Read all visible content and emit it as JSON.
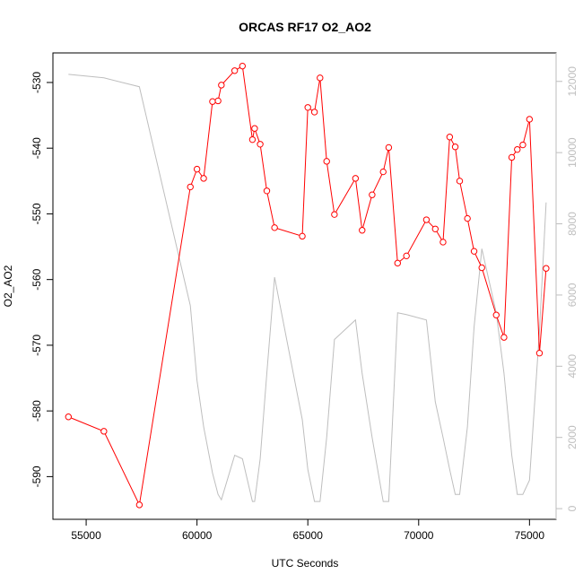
{
  "chart_data": {
    "type": "line",
    "title": "ORCAS RF17 O2_AO2",
    "xlabel": "UTC Seconds",
    "ylabel": "O2_AO2",
    "xlim": [
      53500,
      76200
    ],
    "ylim": [
      -596.5,
      -525.5
    ],
    "y2lim": [
      -300,
      12800
    ],
    "x_ticks": [
      55000,
      60000,
      65000,
      70000,
      75000
    ],
    "x_tick_labels": [
      "55000",
      "60000",
      "65000",
      "70000",
      "75000"
    ],
    "y_ticks": [
      -590,
      -580,
      -570,
      -560,
      -550,
      -540,
      -530
    ],
    "y_tick_labels": [
      "-590",
      "-580",
      "-570",
      "-560",
      "-550",
      "-540",
      "-530"
    ],
    "y2_ticks": [
      0,
      2000,
      4000,
      6000,
      8000,
      10000,
      12000
    ],
    "y2_tick_labels": [
      "0",
      "2000",
      "4000",
      "6000",
      "8000",
      "10000",
      "12000"
    ],
    "series": [
      {
        "axis": "left",
        "color": "#ff0000",
        "marker": "open-circle",
        "x": [
          54200,
          55800,
          57400,
          59700,
          60000,
          60300,
          60700,
          60950,
          61100,
          61700,
          62050,
          62500,
          62600,
          62850,
          63150,
          63500,
          64750,
          65000,
          65300,
          65550,
          65850,
          66200,
          67150,
          67450,
          67900,
          68400,
          68650,
          69050,
          69450,
          70350,
          70750,
          71100,
          71400,
          71650,
          71850,
          72200,
          72500,
          72850,
          73500,
          73850,
          74200,
          74450,
          74700,
          75000,
          75450,
          75750
        ],
        "y": [
          -580.9,
          -583.1,
          -594.3,
          -545.9,
          -543.2,
          -544.6,
          -532.9,
          -532.8,
          -530.4,
          -528.2,
          -527.5,
          -538.7,
          -537.0,
          -539.4,
          -546.5,
          -552.1,
          -553.4,
          -533.8,
          -534.5,
          -529.3,
          -542.0,
          -550.1,
          -544.6,
          -552.5,
          -547.1,
          -543.6,
          -539.9,
          -557.5,
          -556.4,
          -550.9,
          -552.3,
          -554.3,
          -538.3,
          -539.8,
          -545.0,
          -550.7,
          -555.7,
          -558.2,
          -565.4,
          -568.8,
          -541.4,
          -540.2,
          -539.5,
          -535.6,
          -571.2,
          -558.3
        ]
      },
      {
        "axis": "right",
        "color": "#bebebe",
        "marker": "none",
        "x": [
          54200,
          55800,
          57400,
          59700,
          60000,
          60300,
          60700,
          60950,
          61100,
          61700,
          62050,
          62500,
          62600,
          62850,
          63150,
          63500,
          64750,
          65000,
          65300,
          65550,
          65850,
          66200,
          67150,
          67450,
          67900,
          68400,
          68650,
          69050,
          69450,
          70350,
          70750,
          71100,
          71400,
          71650,
          71850,
          72200,
          72500,
          72850,
          73500,
          73850,
          74200,
          74450,
          74700,
          75000,
          75450,
          75750
        ],
        "y": [
          12200,
          12100,
          11850,
          5700,
          3600,
          2300,
          1000,
          400,
          250,
          1500,
          1400,
          200,
          200,
          1400,
          3800,
          6500,
          2500,
          1100,
          200,
          200,
          2000,
          4750,
          5300,
          3800,
          2000,
          200,
          200,
          5500,
          5450,
          5300,
          3000,
          2000,
          1100,
          400,
          400,
          2300,
          5100,
          7300,
          5500,
          3800,
          1500,
          400,
          400,
          800,
          5000,
          8600
        ]
      }
    ]
  }
}
